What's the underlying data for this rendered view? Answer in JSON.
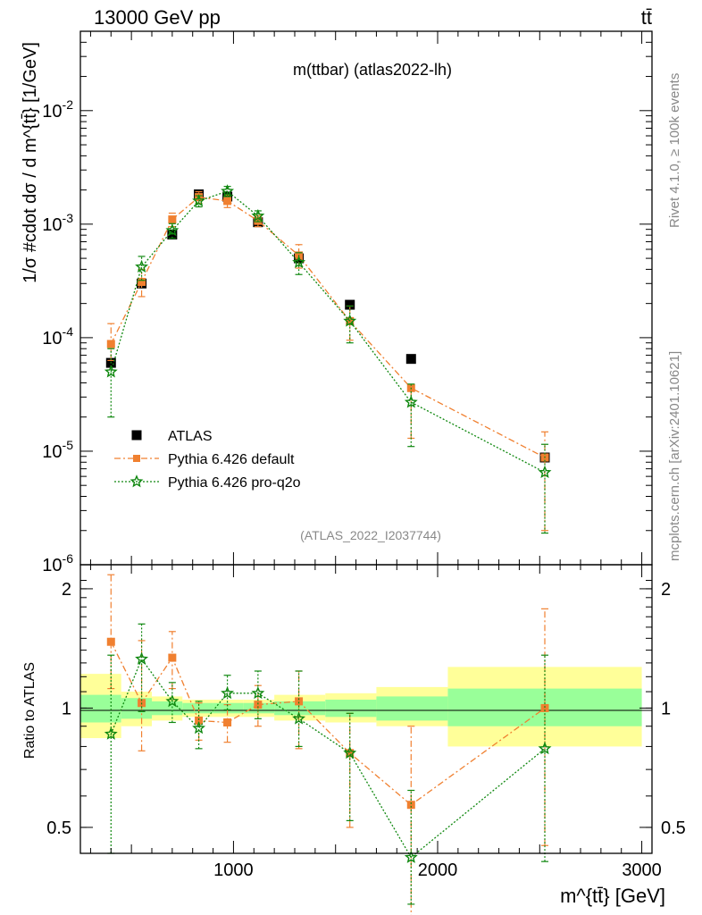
{
  "header": {
    "left_label": "13000 GeV pp",
    "right_label": "tt̄",
    "side_label_top": "Rivet 4.1.0, ≥ 100k events",
    "side_label_bottom": "mcplots.cern.ch [arXiv:2401.10621]"
  },
  "chart_data": [
    {
      "panel": "main",
      "type": "scatter",
      "title": "m(ttbar) (atlas2022-lh)",
      "watermark": "(ATLAS_2022_I2037744)",
      "xlabel": "m^{tt̄} [GeV]",
      "ylabel": "1/σ #cdot dσ / d m^{tt̄} [1/GeV]",
      "xlim": [
        250,
        3050
      ],
      "ylim": [
        1e-06,
        0.05
      ],
      "yscale": "log",
      "yticks": [
        {
          "value": 1e-06,
          "label": "10^-6"
        },
        {
          "value": 1e-05,
          "label": "10^-5"
        },
        {
          "value": 0.0001,
          "label": "10^-4"
        },
        {
          "value": 0.001,
          "label": "10^-3"
        },
        {
          "value": 0.01,
          "label": "10^-2"
        }
      ],
      "x": [
        400,
        550,
        700,
        830,
        970,
        1120,
        1320,
        1570,
        1870,
        2525
      ],
      "series": [
        {
          "name": "ATLAS",
          "values": [
            6e-05,
            0.0003,
            0.00081,
            0.00183,
            0.00175,
            0.00104,
            0.0005,
            0.000195,
            6.5e-05,
            8.8e-06
          ]
        },
        {
          "name": "Pythia 6.426 default",
          "values": [
            8.8e-05,
            0.00031,
            0.0011,
            0.00173,
            0.0016,
            0.00107,
            0.00053,
            0.00014,
            3.6e-05,
            8.8e-06
          ],
          "err_low": [
            2.5e-05,
            8e-05,
            0.00015,
            0.0002,
            0.0002,
            0.00012,
            0.00012,
            4.5e-05,
            2.3e-05,
            6.8e-06
          ],
          "err_high": [
            4.5e-05,
            9e-05,
            0.00015,
            0.0002,
            0.0002,
            0.00012,
            0.00013,
            5e-05,
            0,
            6e-06
          ]
        },
        {
          "name": "Pythia 6.426 pro-q2o",
          "values": [
            5e-05,
            0.00042,
            0.00088,
            0.0016,
            0.00195,
            0.00118,
            0.00046,
            0.00014,
            2.7e-05,
            6.5e-06
          ],
          "err_low": [
            3e-05,
            0.0001,
            0.00013,
            0.00018,
            0.0002,
            0.00013,
            0.0001,
            5e-05,
            1.6e-05,
            4.6e-06
          ],
          "err_high": [
            3e-05,
            0.0001,
            0.00013,
            0.00018,
            0.0002,
            0.00013,
            0.0001,
            5e-05,
            1.2e-05,
            5e-06
          ]
        }
      ],
      "legend": [
        "ATLAS",
        "Pythia 6.426 default",
        "Pythia 6.426 pro-q2o"
      ],
      "legend_position": "lower-left",
      "colors": {
        "ATLAS": "#000000",
        "Pythia 6.426 default": "#f08030",
        "Pythia 6.426 pro-q2o": "#108810"
      }
    },
    {
      "panel": "ratio",
      "type": "line",
      "ylabel": "Ratio to ATLAS",
      "ylim": [
        0.43,
        2.3
      ],
      "yscale": "log",
      "yticks": [
        0.5,
        1,
        2
      ],
      "xticks": [
        1000,
        2000,
        3000
      ],
      "bin_edges": [
        250,
        450,
        600,
        750,
        900,
        1050,
        1200,
        1450,
        1700,
        2050,
        3000
      ],
      "band_inner": [
        [
          0.92,
          1.08
        ],
        [
          0.94,
          1.06
        ],
        [
          0.96,
          1.04
        ],
        [
          0.97,
          1.03
        ],
        [
          0.97,
          1.03
        ],
        [
          0.97,
          1.03
        ],
        [
          0.96,
          1.04
        ],
        [
          0.95,
          1.05
        ],
        [
          0.93,
          1.07
        ],
        [
          0.9,
          1.12
        ]
      ],
      "band_outer": [
        [
          0.84,
          1.22
        ],
        [
          0.9,
          1.1
        ],
        [
          0.93,
          1.07
        ],
        [
          0.95,
          1.05
        ],
        [
          0.95,
          1.05
        ],
        [
          0.95,
          1.05
        ],
        [
          0.93,
          1.08
        ],
        [
          0.92,
          1.09
        ],
        [
          0.9,
          1.13
        ],
        [
          0.8,
          1.27
        ]
      ],
      "band_colors": {
        "inner": "#99ff99",
        "outer": "#ffff99"
      },
      "series": [
        {
          "name": "Pythia 6.426 default",
          "values": [
            1.47,
            1.03,
            1.34,
            0.93,
            0.92,
            1.02,
            1.04,
            0.77,
            0.57,
            1.0
          ],
          "err_low": [
            0.35,
            0.25,
            0.22,
            0.1,
            0.1,
            0.12,
            0.25,
            0.27,
            0.28,
            0.55
          ],
          "err_high": [
            0.7,
            0.45,
            0.22,
            0.1,
            0.1,
            0.12,
            0.2,
            0.2,
            0.33,
            0.78
          ]
        },
        {
          "name": "Pythia 6.426 pro-q2o",
          "values": [
            0.86,
            1.33,
            1.04,
            0.89,
            1.09,
            1.09,
            0.94,
            0.77,
            0.42,
            0.79
          ],
          "err_low": [
            0.43,
            0.35,
            0.12,
            0.1,
            0.1,
            0.15,
            0.14,
            0.25,
            0.1,
            0.38
          ],
          "err_high": [
            0.5,
            0.3,
            0.12,
            0.15,
            0.12,
            0.15,
            0.3,
            0.2,
            0.2,
            0.57
          ]
        }
      ]
    }
  ]
}
